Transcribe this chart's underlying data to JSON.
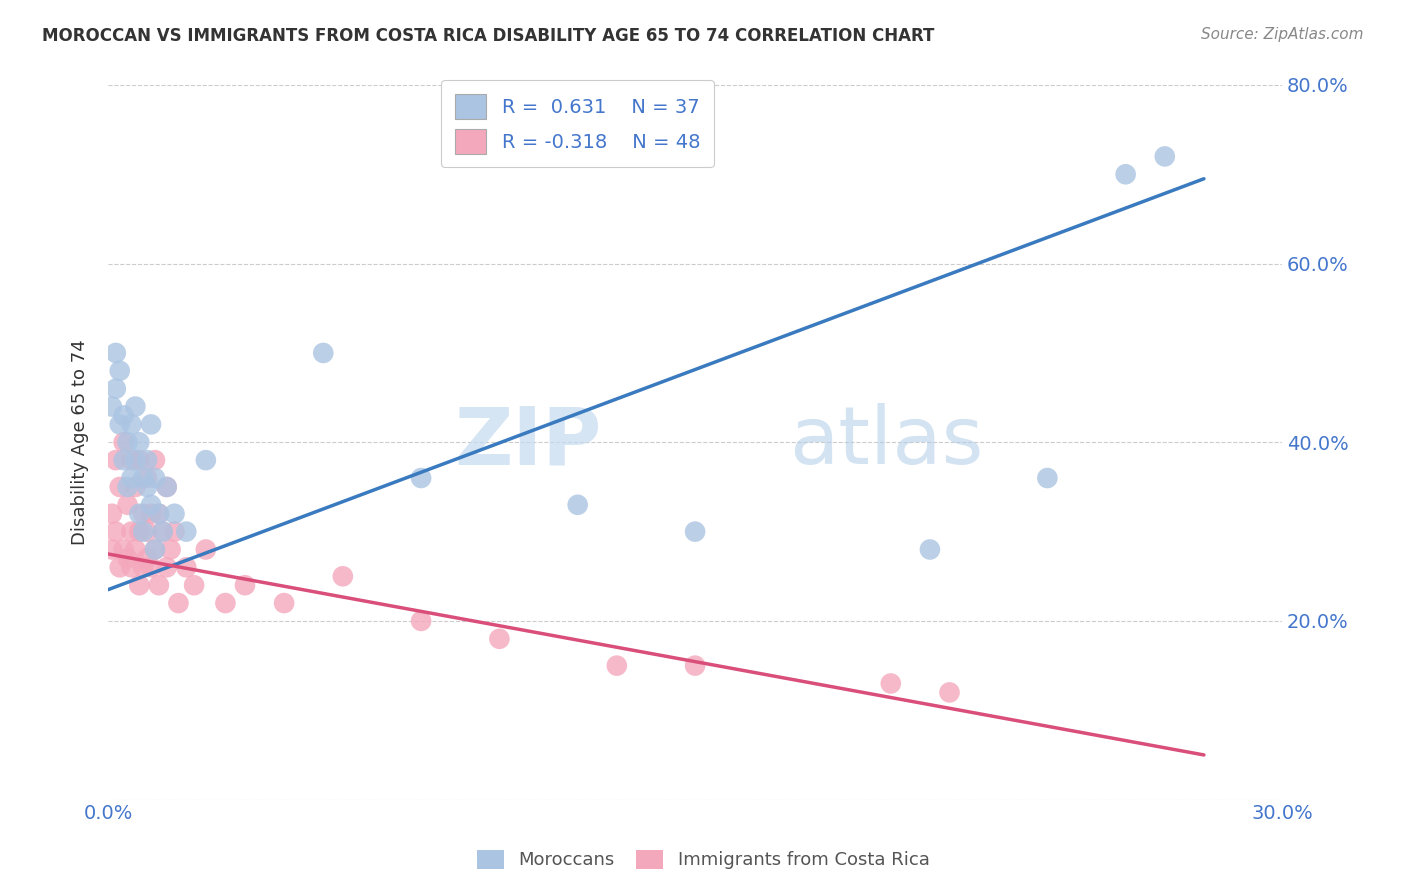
{
  "title": "MOROCCAN VS IMMIGRANTS FROM COSTA RICA DISABILITY AGE 65 TO 74 CORRELATION CHART",
  "source": "Source: ZipAtlas.com",
  "ylabel": "Disability Age 65 to 74",
  "xlim": [
    0.0,
    0.3
  ],
  "ylim": [
    0.0,
    0.8
  ],
  "x_ticks": [
    0.0,
    0.05,
    0.1,
    0.15,
    0.2,
    0.25,
    0.3
  ],
  "x_tick_labels": [
    "0.0%",
    "",
    "",
    "",
    "",
    "",
    "30.0%"
  ],
  "y_ticks": [
    0.0,
    0.2,
    0.4,
    0.6,
    0.8
  ],
  "y_tick_labels_right": [
    "",
    "20.0%",
    "40.0%",
    "60.0%",
    "80.0%"
  ],
  "moroccan_color": "#aac4e2",
  "costa_rica_color": "#f4a8bc",
  "moroccan_line_color": "#3a7abf",
  "costa_rica_line_color": "#d94f7a",
  "moroccan_R": 0.631,
  "moroccan_N": 37,
  "costa_rica_R": -0.318,
  "costa_rica_N": 48,
  "watermark_zip": "ZIP",
  "watermark_atlas": "atlas",
  "legend_label_moroccan": "Moroccans",
  "legend_label_costa_rica": "Immigrants from Costa Rica",
  "moroccan_x": [
    0.001,
    0.002,
    0.002,
    0.003,
    0.003,
    0.004,
    0.004,
    0.005,
    0.005,
    0.006,
    0.006,
    0.007,
    0.007,
    0.008,
    0.008,
    0.009,
    0.009,
    0.01,
    0.01,
    0.011,
    0.011,
    0.012,
    0.012,
    0.013,
    0.014,
    0.015,
    0.017,
    0.02,
    0.025,
    0.055,
    0.08,
    0.12,
    0.15,
    0.21,
    0.24,
    0.26,
    0.27
  ],
  "moroccan_y": [
    0.44,
    0.46,
    0.5,
    0.42,
    0.48,
    0.38,
    0.43,
    0.35,
    0.4,
    0.36,
    0.42,
    0.38,
    0.44,
    0.32,
    0.4,
    0.36,
    0.3,
    0.35,
    0.38,
    0.33,
    0.42,
    0.28,
    0.36,
    0.32,
    0.3,
    0.35,
    0.32,
    0.3,
    0.38,
    0.5,
    0.36,
    0.33,
    0.3,
    0.28,
    0.36,
    0.7,
    0.72
  ],
  "costa_rica_x": [
    0.001,
    0.001,
    0.002,
    0.002,
    0.003,
    0.003,
    0.004,
    0.004,
    0.005,
    0.005,
    0.006,
    0.006,
    0.006,
    0.007,
    0.007,
    0.008,
    0.008,
    0.008,
    0.009,
    0.009,
    0.01,
    0.01,
    0.01,
    0.011,
    0.011,
    0.012,
    0.012,
    0.013,
    0.013,
    0.014,
    0.015,
    0.015,
    0.016,
    0.017,
    0.018,
    0.02,
    0.022,
    0.025,
    0.03,
    0.035,
    0.045,
    0.06,
    0.08,
    0.1,
    0.13,
    0.15,
    0.2,
    0.215
  ],
  "costa_rica_y": [
    0.28,
    0.32,
    0.3,
    0.38,
    0.26,
    0.35,
    0.28,
    0.4,
    0.27,
    0.33,
    0.26,
    0.3,
    0.38,
    0.28,
    0.35,
    0.24,
    0.3,
    0.38,
    0.26,
    0.32,
    0.27,
    0.3,
    0.36,
    0.26,
    0.32,
    0.28,
    0.38,
    0.24,
    0.32,
    0.3,
    0.26,
    0.35,
    0.28,
    0.3,
    0.22,
    0.26,
    0.24,
    0.28,
    0.22,
    0.24,
    0.22,
    0.25,
    0.2,
    0.18,
    0.15,
    0.15,
    0.13,
    0.12
  ],
  "blue_line_x0": 0.0,
  "blue_line_y0": 0.235,
  "blue_line_x1": 0.28,
  "blue_line_y1": 0.695,
  "pink_line_x0": 0.0,
  "pink_line_y0": 0.275,
  "pink_line_x1": 0.28,
  "pink_line_y1": 0.05,
  "background_color": "#ffffff",
  "grid_color": "#cccccc",
  "title_color": "#333333",
  "axis_label_color": "#333333",
  "tick_label_color": "#4477cc",
  "legend_text_color": "#4477cc"
}
